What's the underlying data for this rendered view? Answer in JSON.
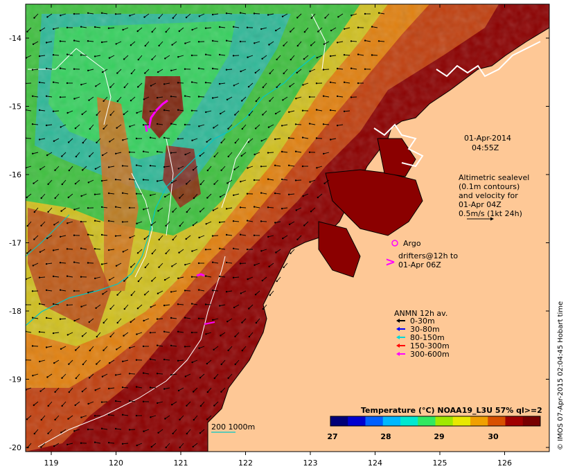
{
  "map": {
    "lon_ticks": [
      "119",
      "120",
      "121",
      "122",
      "123",
      "124",
      "125",
      "126"
    ],
    "lat_ticks": [
      "-14",
      "-15",
      "-16",
      "-17",
      "-18",
      "-19",
      "-20"
    ]
  },
  "annotations": {
    "date": "01-Apr-2014",
    "time": "04:55Z",
    "altimetry_lines": [
      "Altimetric sealevel",
      "(0.1m contours)",
      "and velocity for",
      "01-Apr 04Z",
      "0.5m/s (1kt 24h)"
    ],
    "argo_label": "Argo",
    "drifters_lines": [
      "drifters@12h to",
      "01-Apr 06Z"
    ],
    "depth_contours_label": "200  1000m"
  },
  "anmn_legend": {
    "title": "ANMN 12h av.",
    "items": [
      {
        "label": "0-30m",
        "color": "#000000"
      },
      {
        "label": "30-80m",
        "color": "#0000ff"
      },
      {
        "label": "80-150m",
        "color": "#00d8d8"
      },
      {
        "label": "150-300m",
        "color": "#ff0000"
      },
      {
        "label": "300-600m",
        "color": "#ff00ff"
      }
    ]
  },
  "colorbar": {
    "title": "Temperature (°C) NOAA19_L3U 57% ql>=2",
    "ticks": [
      "27",
      "28",
      "29",
      "30"
    ],
    "colors": [
      "#000078",
      "#0000d0",
      "#0060ff",
      "#00b8ff",
      "#00e8d0",
      "#30e860",
      "#a0e800",
      "#e8e800",
      "#f0a000",
      "#d85000",
      "#a00000",
      "#780000"
    ]
  },
  "credit": "© IMOS 07-Apr-2015 02:04:45 Hobart time"
}
